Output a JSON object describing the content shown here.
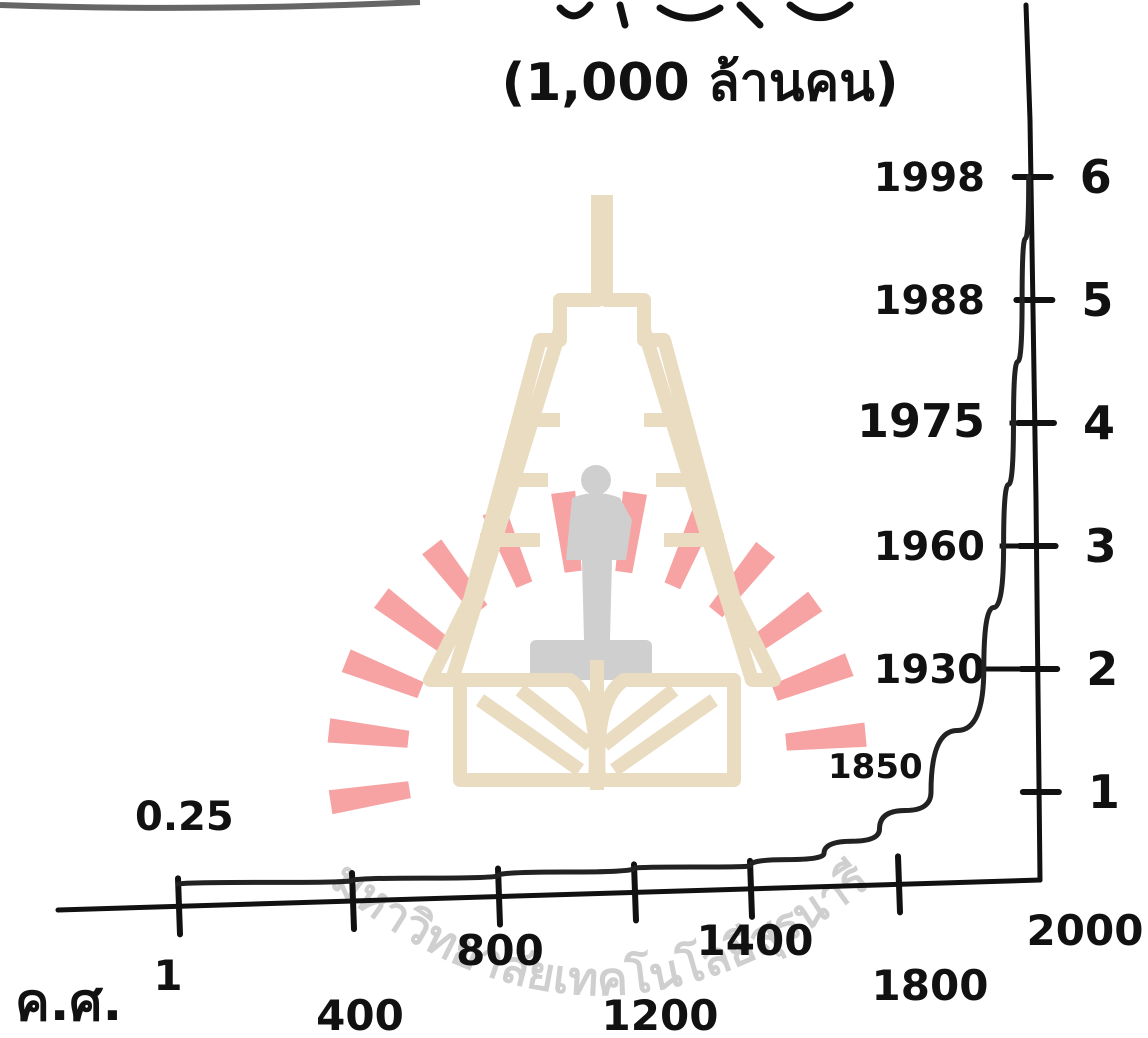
{
  "chart_data": {
    "type": "line",
    "title": "(1,000 ล้านคน)",
    "xlabel": "ค.ศ.",
    "ylabel": "(1,000 ล้านคน)",
    "x_ticks": [
      "1",
      "400",
      "800",
      "1200",
      "1400",
      "1800",
      "2000"
    ],
    "y_ticks": [
      "1",
      "2",
      "3",
      "4",
      "5",
      "6"
    ],
    "xlim": [
      1,
      2000
    ],
    "ylim": [
      0,
      6
    ],
    "grid": false,
    "series": [
      {
        "values": [
          {
            "x": 1,
            "y": 0.25
          },
          {
            "x": 400,
            "y": 0.28
          },
          {
            "x": 800,
            "y": 0.32
          },
          {
            "x": 1200,
            "y": 0.38
          },
          {
            "x": 1400,
            "y": 0.4
          },
          {
            "x": 1600,
            "y": 0.5
          },
          {
            "x": 1750,
            "y": 0.7
          },
          {
            "x": 1850,
            "y": 1.0
          },
          {
            "x": 1930,
            "y": 2.0
          },
          {
            "x": 1960,
            "y": 3.0
          },
          {
            "x": 1975,
            "y": 4.0
          },
          {
            "x": 1988,
            "y": 5.0
          },
          {
            "x": 1998,
            "y": 6.0
          }
        ]
      }
    ],
    "annotations": [
      {
        "text": "0.25",
        "x": 1,
        "y": 0.25
      },
      {
        "text": "1850",
        "x": 1850,
        "y": 1.0
      },
      {
        "text": "1930",
        "x": 1930,
        "y": 2.0
      },
      {
        "text": "1960",
        "x": 1960,
        "y": 3.0
      },
      {
        "text": "1975",
        "x": 1975,
        "y": 4.0
      },
      {
        "text": "1988",
        "x": 1988,
        "y": 5.0
      },
      {
        "text": "1998",
        "x": 1998,
        "y": 6.0
      }
    ]
  },
  "watermark": {
    "text": "มหาวิทยาลัยเทคโนโลยีสุรนารี",
    "colors": {
      "gold": "#e9dcc0",
      "red": "#f7a3a3",
      "gray": "#cfcfcf"
    }
  }
}
